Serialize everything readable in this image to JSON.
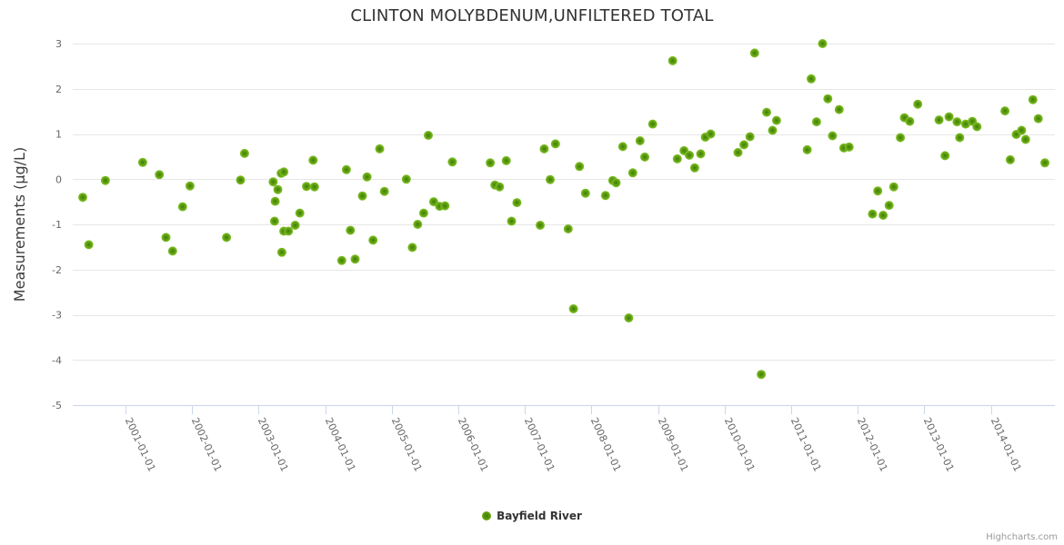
{
  "chart": {
    "title": "CLINTON MOLYBDENUM,UNFILTERED TOTAL",
    "credit": "Highcharts.com",
    "legend": {
      "items": [
        {
          "label": "Bayfield River",
          "marker_color": "#6cae17"
        }
      ]
    }
  },
  "chart_data": {
    "type": "scatter",
    "title": "CLINTON MOLYBDENUM,UNFILTERED TOTAL",
    "xlabel": "",
    "ylabel": "Measurements (µg/L)",
    "x_unit": "decimal_year",
    "xlim": [
      2000.21,
      2014.96
    ],
    "ylim": [
      -5,
      3
    ],
    "y_ticks": [
      3,
      2,
      1,
      0,
      -1,
      -2,
      -3,
      -4,
      -5
    ],
    "x_ticks": [
      "2001-01-01",
      "2002-01-01",
      "2003-01-01",
      "2004-01-01",
      "2005-01-01",
      "2006-01-01",
      "2007-01-01",
      "2008-01-01",
      "2009-01-01",
      "2010-01-01",
      "2011-01-01",
      "2012-01-01",
      "2013-01-01",
      "2014-01-01"
    ],
    "x_tick_start_year": 2001,
    "grid": true,
    "legend_position": "bottom-center",
    "colors": {
      "background": "#ffffff",
      "gridline": "#e6e6e6",
      "axis_line": "#ccd6eb",
      "tick": "#ccd6eb",
      "axis_label": "#666666",
      "title": "#333333",
      "marker_outer": "#84c32e",
      "marker_mid": "#5f9f10",
      "marker_inner": "#3f7d06",
      "credit": "#999999"
    },
    "series": [
      {
        "name": "Bayfield River",
        "color": "#6cae17",
        "marker_radius": 5,
        "points": [
          [
            2000.36,
            -0.4
          ],
          [
            2000.45,
            -1.45
          ],
          [
            2000.7,
            -0.03
          ],
          [
            2001.26,
            0.37
          ],
          [
            2001.51,
            0.1
          ],
          [
            2001.61,
            -1.29
          ],
          [
            2001.71,
            -1.59
          ],
          [
            2001.86,
            -0.61
          ],
          [
            2001.97,
            -0.15
          ],
          [
            2002.52,
            -1.29
          ],
          [
            2002.73,
            -0.02
          ],
          [
            2002.79,
            0.57
          ],
          [
            2003.22,
            -0.06
          ],
          [
            2003.24,
            -0.93
          ],
          [
            2003.25,
            -0.49
          ],
          [
            2003.29,
            -0.23
          ],
          [
            2003.34,
            0.13
          ],
          [
            2003.35,
            -1.62
          ],
          [
            2003.38,
            0.16
          ],
          [
            2003.38,
            -1.15
          ],
          [
            2003.45,
            -1.15
          ],
          [
            2003.55,
            -1.02
          ],
          [
            2003.62,
            -0.75
          ],
          [
            2003.72,
            -0.16
          ],
          [
            2003.82,
            0.42
          ],
          [
            2003.84,
            -0.17
          ],
          [
            2004.25,
            -1.8
          ],
          [
            2004.32,
            0.21
          ],
          [
            2004.38,
            -1.13
          ],
          [
            2004.45,
            -1.77
          ],
          [
            2004.56,
            -0.37
          ],
          [
            2004.63,
            0.05
          ],
          [
            2004.72,
            -1.35
          ],
          [
            2004.82,
            0.67
          ],
          [
            2004.89,
            -0.27
          ],
          [
            2005.22,
            0.0
          ],
          [
            2005.31,
            -1.51
          ],
          [
            2005.39,
            -1.0
          ],
          [
            2005.48,
            -0.75
          ],
          [
            2005.55,
            0.97
          ],
          [
            2005.63,
            -0.5
          ],
          [
            2005.72,
            -0.6
          ],
          [
            2005.8,
            -0.59
          ],
          [
            2005.91,
            0.38
          ],
          [
            2006.48,
            0.36
          ],
          [
            2006.55,
            -0.13
          ],
          [
            2006.62,
            -0.17
          ],
          [
            2006.72,
            0.41
          ],
          [
            2006.8,
            -0.93
          ],
          [
            2006.88,
            -0.52
          ],
          [
            2007.23,
            -1.02
          ],
          [
            2007.29,
            0.67
          ],
          [
            2007.38,
            -0.01
          ],
          [
            2007.46,
            0.78
          ],
          [
            2007.65,
            -1.1
          ],
          [
            2007.73,
            -2.87
          ],
          [
            2007.82,
            0.28
          ],
          [
            2007.91,
            -0.31
          ],
          [
            2008.21,
            -0.36
          ],
          [
            2008.32,
            -0.03
          ],
          [
            2008.37,
            -0.08
          ],
          [
            2008.47,
            0.72
          ],
          [
            2008.56,
            -3.07
          ],
          [
            2008.62,
            0.14
          ],
          [
            2008.73,
            0.85
          ],
          [
            2008.8,
            0.49
          ],
          [
            2008.92,
            1.22
          ],
          [
            2009.22,
            2.62
          ],
          [
            2009.29,
            0.45
          ],
          [
            2009.39,
            0.63
          ],
          [
            2009.47,
            0.53
          ],
          [
            2009.55,
            0.25
          ],
          [
            2009.64,
            0.56
          ],
          [
            2009.71,
            0.93
          ],
          [
            2009.79,
            1.0
          ],
          [
            2010.2,
            0.59
          ],
          [
            2010.29,
            0.76
          ],
          [
            2010.38,
            0.94
          ],
          [
            2010.45,
            2.79
          ],
          [
            2010.55,
            -4.32
          ],
          [
            2010.63,
            1.48
          ],
          [
            2010.72,
            1.08
          ],
          [
            2010.78,
            1.3
          ],
          [
            2011.24,
            0.65
          ],
          [
            2011.3,
            2.22
          ],
          [
            2011.38,
            1.27
          ],
          [
            2011.47,
            3.0
          ],
          [
            2011.55,
            1.78
          ],
          [
            2011.62,
            0.96
          ],
          [
            2011.72,
            1.54
          ],
          [
            2011.79,
            0.69
          ],
          [
            2011.87,
            0.71
          ],
          [
            2012.22,
            -0.77
          ],
          [
            2012.3,
            -0.26
          ],
          [
            2012.38,
            -0.8
          ],
          [
            2012.47,
            -0.58
          ],
          [
            2012.54,
            -0.17
          ],
          [
            2012.64,
            0.92
          ],
          [
            2012.7,
            1.36
          ],
          [
            2012.78,
            1.28
          ],
          [
            2012.9,
            1.66
          ],
          [
            2013.22,
            1.31
          ],
          [
            2013.31,
            0.52
          ],
          [
            2013.37,
            1.38
          ],
          [
            2013.49,
            1.27
          ],
          [
            2013.53,
            0.92
          ],
          [
            2013.62,
            1.22
          ],
          [
            2013.72,
            1.28
          ],
          [
            2013.79,
            1.16
          ],
          [
            2014.21,
            1.51
          ],
          [
            2014.29,
            0.43
          ],
          [
            2014.38,
            0.99
          ],
          [
            2014.46,
            1.08
          ],
          [
            2014.52,
            0.88
          ],
          [
            2014.63,
            1.76
          ],
          [
            2014.71,
            1.34
          ],
          [
            2014.81,
            0.36
          ]
        ]
      }
    ]
  }
}
